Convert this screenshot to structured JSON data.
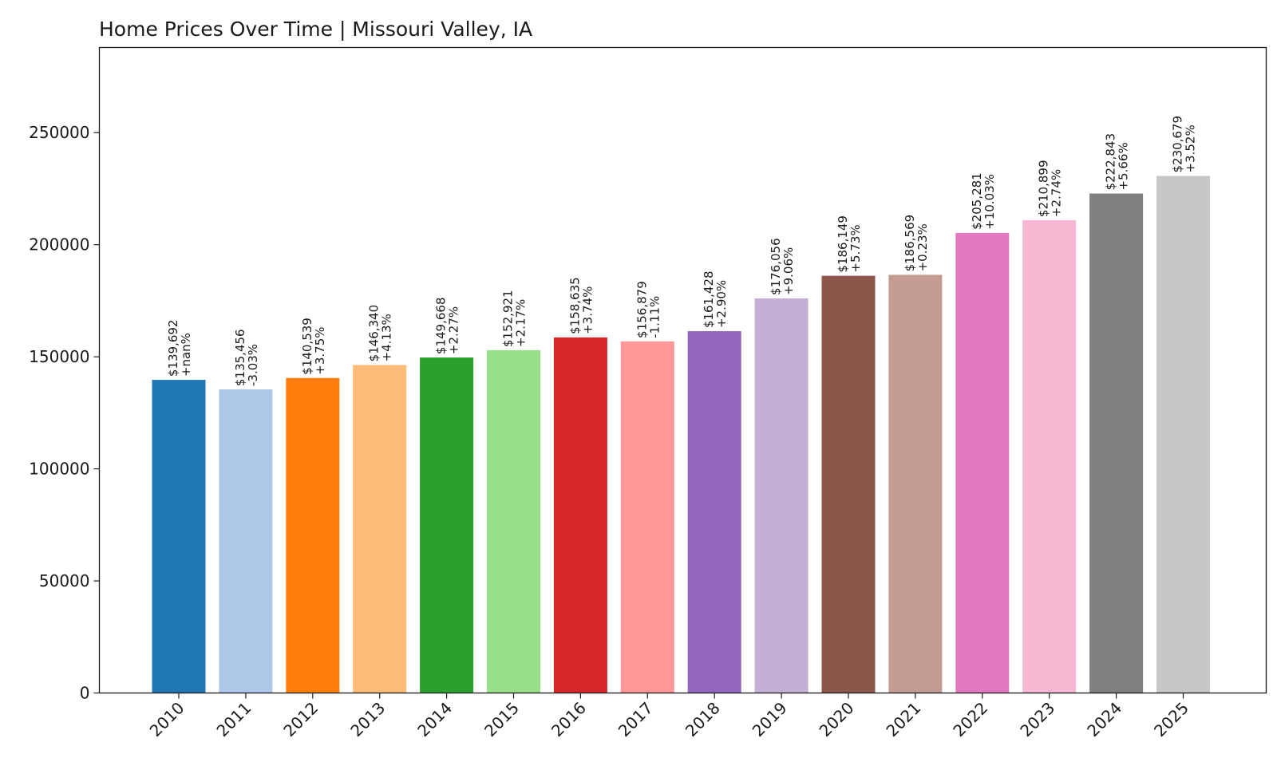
{
  "chart_data": {
    "type": "bar",
    "title": "Home Prices Over Time | Missouri Valley, IA",
    "xlabel": "",
    "ylabel": "",
    "ylim": [
      0,
      288000
    ],
    "yticks": [
      0,
      50000,
      100000,
      150000,
      200000,
      250000
    ],
    "ytick_labels": [
      "0",
      "50000",
      "100000",
      "150000",
      "200000",
      "250000"
    ],
    "grid": false,
    "categories": [
      "2010",
      "2011",
      "2012",
      "2013",
      "2014",
      "2015",
      "2016",
      "2017",
      "2018",
      "2019",
      "2020",
      "2021",
      "2022",
      "2023",
      "2024",
      "2025"
    ],
    "values": [
      139692,
      135456,
      140539,
      146340,
      149668,
      152921,
      158635,
      156879,
      161428,
      176056,
      186149,
      186569,
      205281,
      210899,
      222843,
      230679
    ],
    "value_labels": [
      "$139,692",
      "$135,456",
      "$140,539",
      "$146,340",
      "$149,668",
      "$152,921",
      "$158,635",
      "$156,879",
      "$161,428",
      "$176,056",
      "$186,149",
      "$186,569",
      "$205,281",
      "$210,899",
      "$222,843",
      "$230,679"
    ],
    "change_labels": [
      "+nan%",
      "-3.03%",
      "+3.75%",
      "+4.13%",
      "+2.27%",
      "+2.17%",
      "+3.74%",
      "-1.11%",
      "+2.90%",
      "+9.06%",
      "+5.73%",
      "+0.23%",
      "+10.03%",
      "+2.74%",
      "+5.66%",
      "+3.52%"
    ],
    "colors": [
      "#1f77b4",
      "#aec7e8",
      "#ff7f0e",
      "#ffbb78",
      "#2ca02c",
      "#98df8a",
      "#d62728",
      "#ff9896",
      "#9467bd",
      "#c5b0d5",
      "#8c564b",
      "#c49c94",
      "#e377c2",
      "#f7b6d2",
      "#7f7f7f",
      "#c7c7c7"
    ]
  }
}
